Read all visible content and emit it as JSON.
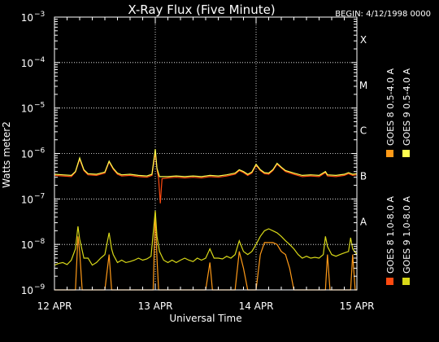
{
  "chart_data": {
    "type": "line",
    "title": "X-Ray Flux (Five Minute)",
    "begin_label": "BEGIN: 4/12/1998 0000",
    "xlabel": "Universal Time",
    "ylabel": "Watts meter2",
    "y_scale": "log",
    "ylim": [
      1e-09,
      0.001
    ],
    "y_ticks": [
      {
        "base": "10",
        "exp": "−9"
      },
      {
        "base": "10",
        "exp": "−8"
      },
      {
        "base": "10",
        "exp": "−7"
      },
      {
        "base": "10",
        "exp": "−6"
      },
      {
        "base": "10",
        "exp": "−5"
      },
      {
        "base": "10",
        "exp": "−4"
      },
      {
        "base": "10",
        "exp": "−3"
      }
    ],
    "x_range_hours": [
      0,
      72
    ],
    "x_ticks": [
      "12 APR",
      "13 APR",
      "14 APR",
      "15 APR"
    ],
    "flare_classes": [
      "A",
      "B",
      "C",
      "M",
      "X"
    ],
    "grid": true,
    "legend_placement": "right-vertical",
    "series": [
      {
        "name": "GOES 8 1.0-8.0 A",
        "color": "#ff4a10",
        "points": [
          [
            0,
            3.3e-07
          ],
          [
            2,
            3.2e-07
          ],
          [
            4,
            3.1e-07
          ],
          [
            5,
            3.9e-07
          ],
          [
            6,
            7.5e-07
          ],
          [
            7,
            4.2e-07
          ],
          [
            8,
            3.4e-07
          ],
          [
            10,
            3.3e-07
          ],
          [
            12,
            3.7e-07
          ],
          [
            13,
            6.5e-07
          ],
          [
            14,
            4.5e-07
          ],
          [
            15,
            3.5e-07
          ],
          [
            16,
            3.2e-07
          ],
          [
            18,
            3.3e-07
          ],
          [
            20,
            3.1e-07
          ],
          [
            22,
            3e-07
          ],
          [
            23.2,
            3.3e-07
          ],
          [
            24,
            1.05e-06
          ],
          [
            24.4,
            4.5e-07
          ],
          [
            24.8,
            2.8e-07
          ],
          [
            25.2,
            8e-08
          ],
          [
            25.6,
            2.8e-07
          ],
          [
            27,
            2.9e-07
          ],
          [
            29,
            3e-07
          ],
          [
            31,
            2.9e-07
          ],
          [
            33,
            3e-07
          ],
          [
            35,
            2.9e-07
          ],
          [
            37,
            3.1e-07
          ],
          [
            39,
            3e-07
          ],
          [
            41,
            3.2e-07
          ],
          [
            43,
            3.5e-07
          ],
          [
            44,
            4.2e-07
          ],
          [
            45,
            3.8e-07
          ],
          [
            46,
            3.3e-07
          ],
          [
            47,
            3.7e-07
          ],
          [
            48,
            5.5e-07
          ],
          [
            49,
            4.2e-07
          ],
          [
            50,
            3.6e-07
          ],
          [
            51,
            3.5e-07
          ],
          [
            52,
            4.2e-07
          ],
          [
            53,
            5.8e-07
          ],
          [
            54,
            4.8e-07
          ],
          [
            55,
            4e-07
          ],
          [
            57,
            3.5e-07
          ],
          [
            59,
            3.1e-07
          ],
          [
            61,
            3.2e-07
          ],
          [
            63,
            3.1e-07
          ],
          [
            64.5,
            3.8e-07
          ],
          [
            65,
            3.2e-07
          ],
          [
            67,
            3.1e-07
          ],
          [
            69,
            3.3e-07
          ],
          [
            70,
            3.6e-07
          ],
          [
            71,
            3.3e-07
          ],
          [
            72,
            3.4e-07
          ]
        ]
      },
      {
        "name": "GOES 8 0.5-4.0 A",
        "color": "#ff9a18",
        "points": [
          [
            0,
            1e-09
          ],
          [
            5,
            1e-09
          ],
          [
            5.6,
            1.5e-08
          ],
          [
            6,
            7e-09
          ],
          [
            6.6,
            1e-09
          ],
          [
            12,
            1e-09
          ],
          [
            13,
            6e-09
          ],
          [
            13.6,
            1e-09
          ],
          [
            23.5,
            1e-09
          ],
          [
            24,
            5e-08
          ],
          [
            24.4,
            5e-09
          ],
          [
            24.8,
            1e-09
          ],
          [
            36,
            1e-09
          ],
          [
            37,
            4e-09
          ],
          [
            37.6,
            1e-09
          ],
          [
            43,
            1e-09
          ],
          [
            44,
            7e-09
          ],
          [
            45,
            3e-09
          ],
          [
            46,
            1e-09
          ],
          [
            48,
            1e-09
          ],
          [
            49,
            6e-09
          ],
          [
            50,
            1.1e-08
          ],
          [
            51,
            1.1e-08
          ],
          [
            52,
            1.1e-08
          ],
          [
            53,
            1e-08
          ],
          [
            54,
            7e-09
          ],
          [
            55,
            6e-09
          ],
          [
            56,
            3e-09
          ],
          [
            57,
            1e-09
          ],
          [
            64.5,
            1e-09
          ],
          [
            65,
            6e-09
          ],
          [
            65.6,
            1e-09
          ],
          [
            70.5,
            1e-09
          ],
          [
            71,
            6e-09
          ],
          [
            71.6,
            1e-09
          ],
          [
            72,
            1e-09
          ]
        ]
      },
      {
        "name": "GOES 9 0.5-4.0 A",
        "color": "#ffff50",
        "points": [
          [
            0,
            3.5e-07
          ],
          [
            2,
            3.4e-07
          ],
          [
            4,
            3.3e-07
          ],
          [
            5,
            4e-07
          ],
          [
            6,
            8e-07
          ],
          [
            7,
            4.4e-07
          ],
          [
            8,
            3.6e-07
          ],
          [
            10,
            3.5e-07
          ],
          [
            12,
            3.9e-07
          ],
          [
            13,
            6.8e-07
          ],
          [
            14,
            4.7e-07
          ],
          [
            15,
            3.7e-07
          ],
          [
            16,
            3.4e-07
          ],
          [
            18,
            3.5e-07
          ],
          [
            20,
            3.3e-07
          ],
          [
            22,
            3.2e-07
          ],
          [
            23.2,
            3.5e-07
          ],
          [
            24,
            1.25e-06
          ],
          [
            24.4,
            4.7e-07
          ],
          [
            25,
            3.1e-07
          ],
          [
            27,
            3.1e-07
          ],
          [
            29,
            3.2e-07
          ],
          [
            31,
            3.1e-07
          ],
          [
            33,
            3.2e-07
          ],
          [
            35,
            3.1e-07
          ],
          [
            37,
            3.3e-07
          ],
          [
            39,
            3.2e-07
          ],
          [
            41,
            3.4e-07
          ],
          [
            43,
            3.7e-07
          ],
          [
            44,
            4.4e-07
          ],
          [
            45,
            4e-07
          ],
          [
            46,
            3.5e-07
          ],
          [
            47,
            3.9e-07
          ],
          [
            48,
            5.8e-07
          ],
          [
            49,
            4.4e-07
          ],
          [
            50,
            3.8e-07
          ],
          [
            51,
            3.7e-07
          ],
          [
            52,
            4.4e-07
          ],
          [
            53,
            6.1e-07
          ],
          [
            54,
            5e-07
          ],
          [
            55,
            4.2e-07
          ],
          [
            57,
            3.7e-07
          ],
          [
            59,
            3.3e-07
          ],
          [
            61,
            3.4e-07
          ],
          [
            63,
            3.3e-07
          ],
          [
            64.5,
            4e-07
          ],
          [
            65,
            3.4e-07
          ],
          [
            67,
            3.3e-07
          ],
          [
            69,
            3.5e-07
          ],
          [
            70,
            3.8e-07
          ],
          [
            71,
            3.5e-07
          ],
          [
            72,
            3.6e-07
          ]
        ]
      },
      {
        "name": "GOES 9 1.0-8.0 A",
        "color": "#d8d818",
        "points": [
          [
            0,
            3.5e-09
          ],
          [
            1,
            3.8e-09
          ],
          [
            2,
            4e-09
          ],
          [
            3,
            3.6e-09
          ],
          [
            4,
            4.5e-09
          ],
          [
            5,
            8e-09
          ],
          [
            5.6,
            2.5e-08
          ],
          [
            6,
            1.3e-08
          ],
          [
            7,
            5e-09
          ],
          [
            8,
            5e-09
          ],
          [
            9,
            3.5e-09
          ],
          [
            10,
            4e-09
          ],
          [
            11,
            5e-09
          ],
          [
            12,
            6e-09
          ],
          [
            13,
            1.8e-08
          ],
          [
            13.6,
            8e-09
          ],
          [
            14,
            6e-09
          ],
          [
            15,
            4e-09
          ],
          [
            16,
            4.5e-09
          ],
          [
            17,
            4e-09
          ],
          [
            18,
            4.2e-09
          ],
          [
            19,
            4.5e-09
          ],
          [
            20,
            5e-09
          ],
          [
            21,
            4.5e-09
          ],
          [
            22,
            4.8e-09
          ],
          [
            23,
            5.5e-09
          ],
          [
            24,
            5.5e-08
          ],
          [
            24.4,
            1.5e-08
          ],
          [
            25,
            7e-09
          ],
          [
            26,
            4.5e-09
          ],
          [
            27,
            4e-09
          ],
          [
            28,
            4.5e-09
          ],
          [
            29,
            4e-09
          ],
          [
            30,
            4.5e-09
          ],
          [
            31,
            5e-09
          ],
          [
            32,
            4.5e-09
          ],
          [
            33,
            4.2e-09
          ],
          [
            34,
            5e-09
          ],
          [
            35,
            4.5e-09
          ],
          [
            36,
            5e-09
          ],
          [
            37,
            8e-09
          ],
          [
            38,
            5e-09
          ],
          [
            39,
            5e-09
          ],
          [
            40,
            4.8e-09
          ],
          [
            41,
            5.5e-09
          ],
          [
            42,
            5e-09
          ],
          [
            43,
            6e-09
          ],
          [
            44,
            1.2e-08
          ],
          [
            45,
            7e-09
          ],
          [
            46,
            6e-09
          ],
          [
            47,
            7e-09
          ],
          [
            48,
            1e-08
          ],
          [
            49,
            1.5e-08
          ],
          [
            50,
            2e-08
          ],
          [
            51,
            2.2e-08
          ],
          [
            52,
            2e-08
          ],
          [
            53,
            1.8e-08
          ],
          [
            54,
            1.5e-08
          ],
          [
            55,
            1.2e-08
          ],
          [
            56,
            1e-08
          ],
          [
            57,
            8e-09
          ],
          [
            58,
            6e-09
          ],
          [
            59,
            5e-09
          ],
          [
            60,
            5.5e-09
          ],
          [
            61,
            5e-09
          ],
          [
            62,
            5.2e-09
          ],
          [
            63,
            5e-09
          ],
          [
            64,
            6e-09
          ],
          [
            64.5,
            1.5e-08
          ],
          [
            65,
            9e-09
          ],
          [
            66,
            6e-09
          ],
          [
            67,
            5.5e-09
          ],
          [
            68,
            6e-09
          ],
          [
            69,
            6.5e-09
          ],
          [
            70,
            7e-09
          ],
          [
            70.5,
            1.4e-08
          ],
          [
            71,
            8e-09
          ],
          [
            72,
            6e-09
          ]
        ]
      }
    ]
  }
}
